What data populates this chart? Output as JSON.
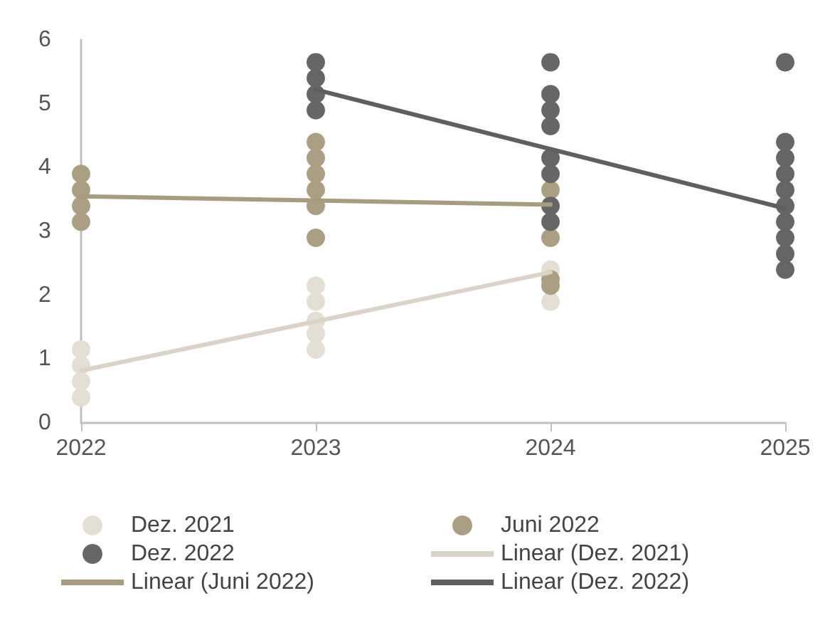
{
  "chart_data": {
    "type": "scatter",
    "xlim": [
      2022,
      2025
    ],
    "xticks": [
      2022,
      2023,
      2024,
      2025
    ],
    "ylim": [
      0,
      6
    ],
    "yticks": [
      0,
      1,
      2,
      3,
      4,
      5,
      6
    ],
    "grid": false,
    "legend": "bottom",
    "series": [
      {
        "name": "Dez. 2021",
        "marker": "circle",
        "color": "#e3dfd4",
        "x": [
          2022,
          2022,
          2022,
          2022,
          2023,
          2023,
          2023,
          2023,
          2023,
          2024,
          2024
        ],
        "values": [
          0.4,
          0.65,
          0.9,
          1.15,
          2.15,
          1.9,
          1.6,
          1.4,
          1.15,
          2.4,
          1.9
        ]
      },
      {
        "name": "Juni 2022",
        "marker": "circle",
        "color": "#ab9f83",
        "x": [
          2022,
          2022,
          2022,
          2022,
          2023,
          2023,
          2023,
          2023,
          2023,
          2023,
          2024,
          2024,
          2024,
          2024
        ],
        "values": [
          3.9,
          3.65,
          3.4,
          3.15,
          4.4,
          4.15,
          3.9,
          3.65,
          3.4,
          2.9,
          3.65,
          2.9,
          2.25,
          2.15
        ]
      },
      {
        "name": "Dez. 2022",
        "marker": "circle",
        "color": "#666666",
        "x": [
          2023,
          2023,
          2023,
          2023,
          2024,
          2024,
          2024,
          2024,
          2024,
          2024,
          2024,
          2024,
          2025,
          2025,
          2025,
          2025,
          2025,
          2025,
          2025,
          2025,
          2025,
          2025
        ],
        "values": [
          5.65,
          5.4,
          5.15,
          4.9,
          5.65,
          5.15,
          4.9,
          4.65,
          4.15,
          3.9,
          3.4,
          3.15,
          5.65,
          4.4,
          4.15,
          3.9,
          3.65,
          3.4,
          3.15,
          2.9,
          2.65,
          2.4
        ]
      },
      {
        "name": "Linear (Dez. 2021)",
        "type": "line",
        "marker": "none",
        "line_style": "solid",
        "color": "#d9d4c7",
        "x": [
          2022,
          2024
        ],
        "values": [
          0.82,
          2.36
        ]
      },
      {
        "name": "Linear (Juni 2022)",
        "type": "line",
        "marker": "none",
        "line_style": "solid",
        "color": "#a89c80",
        "x": [
          2022,
          2024
        ],
        "values": [
          3.55,
          3.42
        ]
      },
      {
        "name": "Linear (Dez. 2022)",
        "type": "line",
        "marker": "none",
        "line_style": "solid",
        "color": "#5f5f5f",
        "x": [
          2023,
          2025
        ],
        "values": [
          5.22,
          3.36
        ]
      }
    ]
  }
}
